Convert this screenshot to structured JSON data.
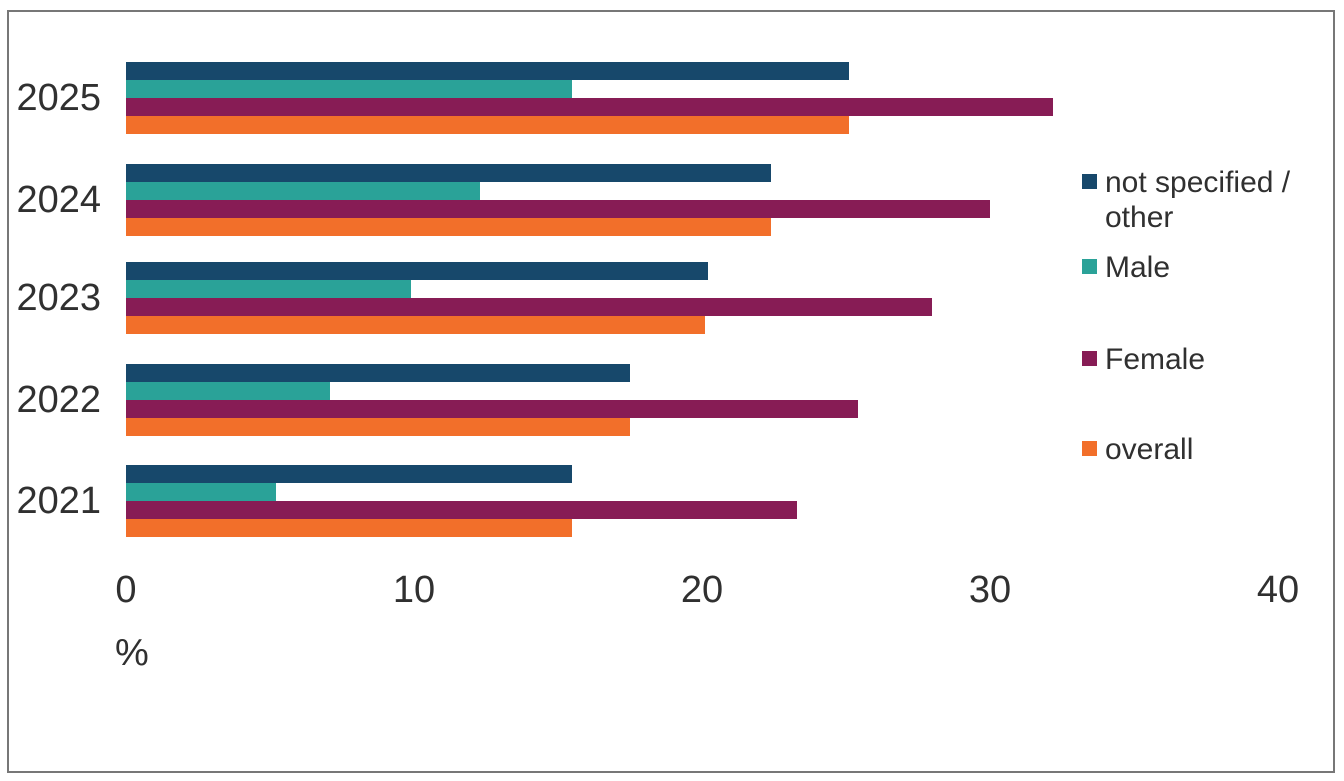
{
  "chart_data": {
    "type": "bar",
    "orientation": "horizontal",
    "categories": [
      "2025",
      "2024",
      "2023",
      "2022",
      "2021"
    ],
    "series": [
      {
        "name": "not specified / other",
        "color": "#17486B",
        "values": [
          25.1,
          22.4,
          20.2,
          17.5,
          15.5
        ]
      },
      {
        "name": "Male",
        "color": "#2AA298",
        "values": [
          15.5,
          12.3,
          9.9,
          7.1,
          5.2
        ]
      },
      {
        "name": "Female",
        "color": "#871C55",
        "values": [
          32.2,
          30.0,
          28.0,
          25.4,
          23.3
        ]
      },
      {
        "name": "overall",
        "color": "#F26F2A",
        "values": [
          25.1,
          22.4,
          20.1,
          17.5,
          15.5
        ]
      }
    ],
    "xlabel": "%",
    "xlim": [
      0,
      40
    ],
    "xticks": [
      0,
      10,
      20,
      30,
      40
    ],
    "legend_position": "right",
    "grid": false,
    "frame_border_color": "#777777",
    "background_color": "#FFFFFF",
    "text_color": "#303030"
  }
}
